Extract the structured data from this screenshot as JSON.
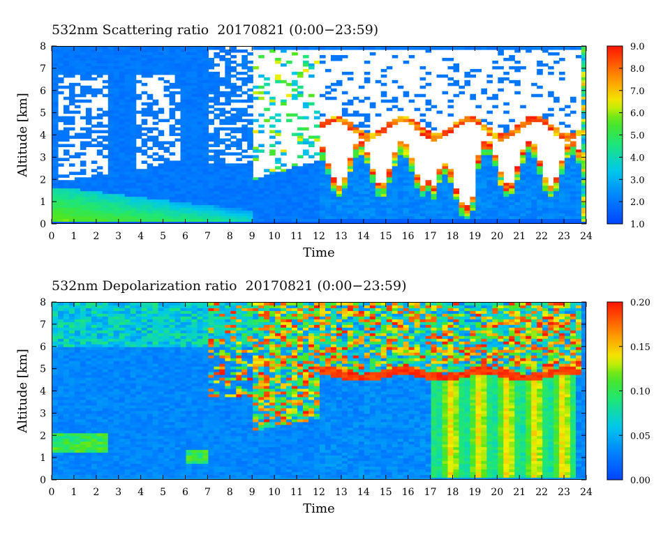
{
  "chart_data": [
    {
      "type": "heatmap",
      "title": "532nm Scattering ratio  20170821 (0:00−23:59)",
      "xlabel": "Time",
      "ylabel": "Altitude [km]",
      "xlim": [
        0,
        24
      ],
      "ylim": [
        0,
        8
      ],
      "x_ticks": [
        "0",
        "1",
        "2",
        "3",
        "4",
        "5",
        "6",
        "7",
        "8",
        "9",
        "10",
        "11",
        "12",
        "13",
        "14",
        "15",
        "16",
        "17",
        "18",
        "19",
        "20",
        "21",
        "22",
        "23",
        "24"
      ],
      "y_ticks": [
        "0",
        "1",
        "2",
        "3",
        "4",
        "5",
        "6",
        "7",
        "8"
      ],
      "colorbar": {
        "min": 1.0,
        "max": 9.0,
        "tick_labels": [
          "1.0",
          "2.0",
          "3.0",
          "4.0",
          "5.0",
          "6.0",
          "7.0",
          "8.0",
          "9.0"
        ]
      },
      "features": [
        {
          "time_start": 0,
          "time_end": 3.5,
          "alt_bottom": 0.5,
          "alt_top": 1.6,
          "value": 4.5
        },
        {
          "time_start": 3.5,
          "time_end": 8.5,
          "alt_bottom": 0.4,
          "alt_top": 1.0,
          "value": 3.5
        },
        {
          "time_start": 12.5,
          "time_end": 16.5,
          "alt_bottom": 0.3,
          "alt_top": 4.5,
          "value": 2.0
        },
        {
          "time_start": 16.5,
          "time_end": 23.7,
          "alt_bottom": 0.3,
          "alt_top": 4.5,
          "value": 2.0
        },
        {
          "time_start": 12.5,
          "time_end": 23.7,
          "alt_bottom": 2.5,
          "alt_top": 5.0,
          "value": 7.0
        }
      ]
    },
    {
      "type": "heatmap",
      "title": "532nm Depolarization ratio  20170821 (0:00−23:59)",
      "xlabel": "Time",
      "ylabel": "Altitude [km]",
      "xlim": [
        0,
        24
      ],
      "ylim": [
        0,
        8
      ],
      "x_ticks": [
        "0",
        "1",
        "2",
        "3",
        "4",
        "5",
        "6",
        "7",
        "8",
        "9",
        "10",
        "11",
        "12",
        "13",
        "14",
        "15",
        "16",
        "17",
        "18",
        "19",
        "20",
        "21",
        "22",
        "23",
        "24"
      ],
      "y_ticks": [
        "0",
        "1",
        "2",
        "3",
        "4",
        "5",
        "6",
        "7",
        "8"
      ],
      "colorbar": {
        "min": 0.0,
        "max": 0.2,
        "tick_labels": [
          "0.00",
          "0.05",
          "0.10",
          "0.15",
          "0.20"
        ]
      },
      "features": [
        {
          "time_start": 0,
          "time_end": 2.5,
          "alt_bottom": 1.4,
          "alt_top": 2.1,
          "value": 0.06
        },
        {
          "time_start": 9,
          "time_end": 12,
          "alt_bottom": 2.5,
          "alt_top": 8.0,
          "value": 0.16
        },
        {
          "time_start": 12,
          "time_end": 23.7,
          "alt_bottom": 4.6,
          "alt_top": 8.0,
          "value": 0.17
        },
        {
          "time_start": 17,
          "time_end": 23.5,
          "alt_bottom": 0.0,
          "alt_top": 4.5,
          "value": 0.09
        }
      ]
    }
  ]
}
